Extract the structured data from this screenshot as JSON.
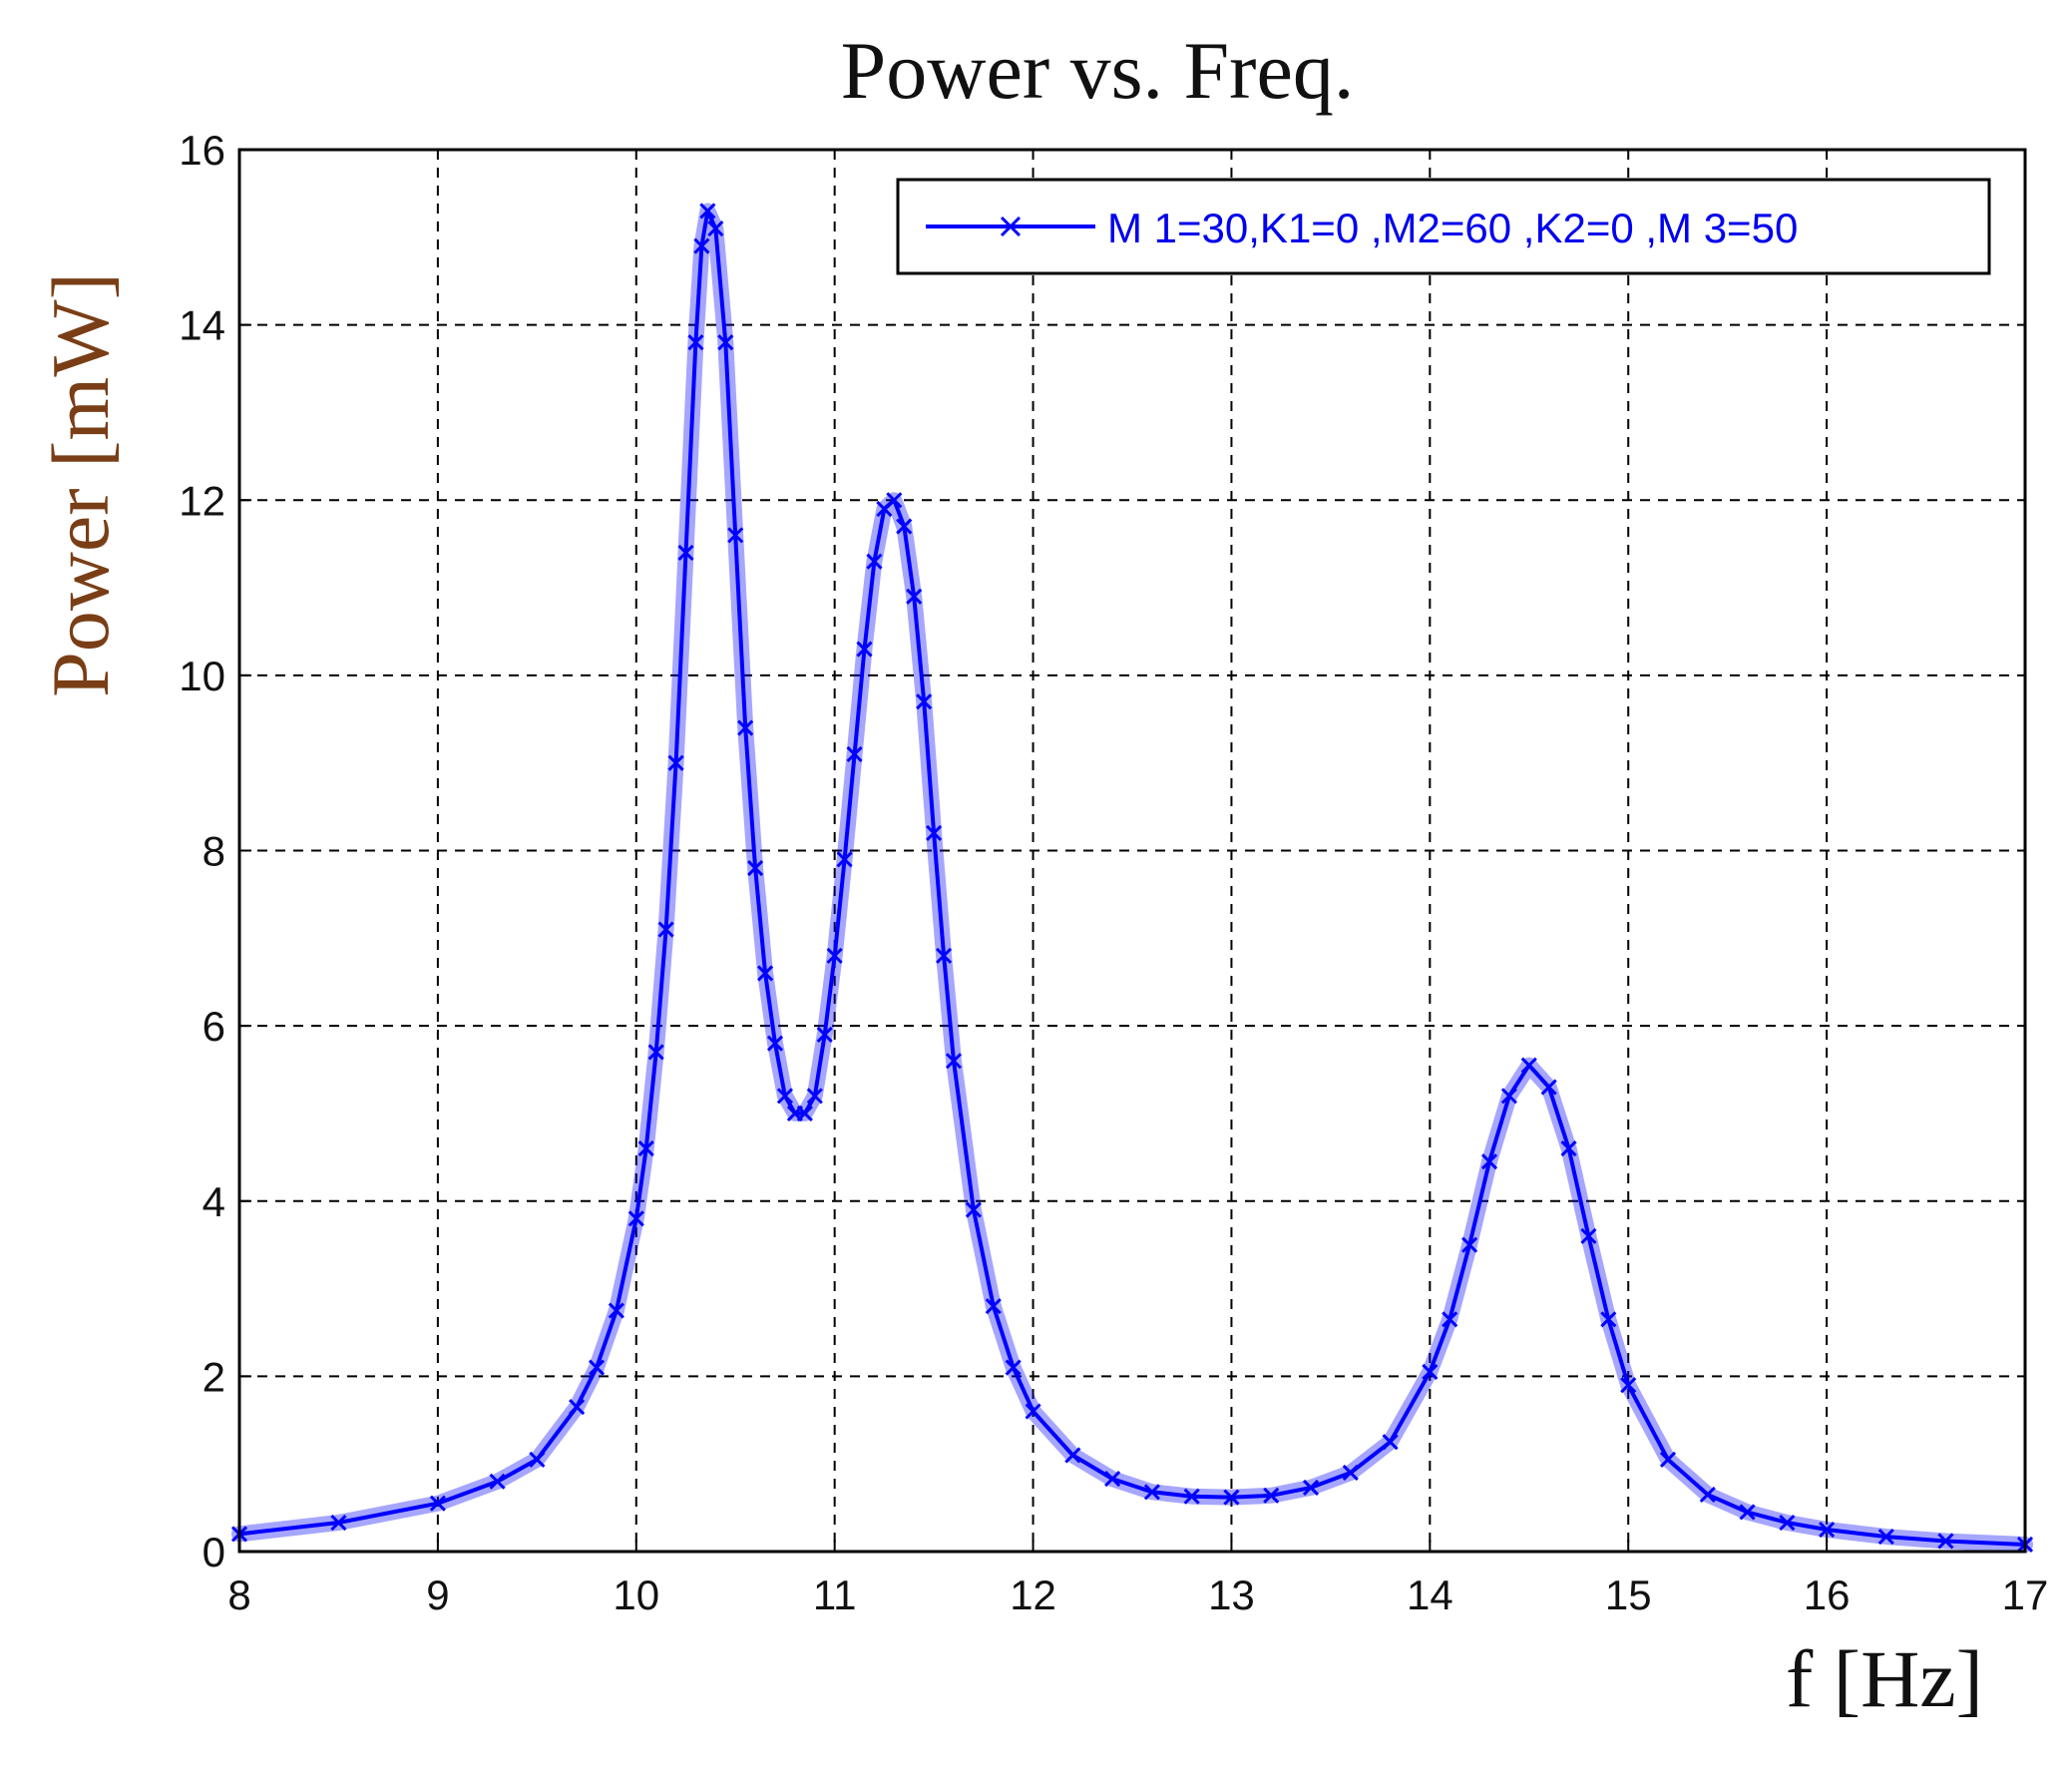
{
  "chart_data": {
    "type": "line",
    "title": "Power vs. Freq.",
    "xlabel": "f [Hz]",
    "ylabel": "Power [mW]",
    "xlim": [
      8,
      17
    ],
    "ylim": [
      0,
      16
    ],
    "xticks": [
      8,
      9,
      10,
      11,
      12,
      13,
      14,
      15,
      16,
      17
    ],
    "yticks": [
      0,
      2,
      4,
      6,
      8,
      10,
      12,
      14,
      16
    ],
    "grid": true,
    "grid_style": "dashed",
    "legend_position": "top-right",
    "marker": "x",
    "series_color": "#0000ff",
    "series": [
      {
        "name": "M 1=30,K1=0 ,M2=60 ,K2=0 ,M 3=50",
        "x": [
          8.0,
          8.5,
          9.0,
          9.3,
          9.5,
          9.7,
          9.8,
          9.9,
          10.0,
          10.05,
          10.1,
          10.15,
          10.2,
          10.25,
          10.3,
          10.33,
          10.36,
          10.4,
          10.45,
          10.5,
          10.55,
          10.6,
          10.65,
          10.7,
          10.75,
          10.8,
          10.85,
          10.9,
          10.95,
          11.0,
          11.05,
          11.1,
          11.15,
          11.2,
          11.25,
          11.3,
          11.35,
          11.4,
          11.45,
          11.5,
          11.55,
          11.6,
          11.7,
          11.8,
          11.9,
          12.0,
          12.2,
          12.4,
          12.6,
          12.8,
          13.0,
          13.2,
          13.4,
          13.6,
          13.8,
          14.0,
          14.1,
          14.2,
          14.3,
          14.4,
          14.5,
          14.6,
          14.7,
          14.8,
          14.9,
          15.0,
          15.2,
          15.4,
          15.6,
          15.8,
          16.0,
          16.3,
          16.6,
          17.0
        ],
        "values": [
          0.2,
          0.33,
          0.55,
          0.8,
          1.05,
          1.65,
          2.1,
          2.75,
          3.8,
          4.6,
          5.7,
          7.1,
          9.0,
          11.4,
          13.8,
          14.9,
          15.3,
          15.1,
          13.8,
          11.6,
          9.4,
          7.8,
          6.6,
          5.8,
          5.2,
          5.0,
          5.0,
          5.2,
          5.9,
          6.8,
          7.9,
          9.1,
          10.3,
          11.3,
          11.9,
          12.0,
          11.7,
          10.9,
          9.7,
          8.2,
          6.8,
          5.6,
          3.9,
          2.8,
          2.1,
          1.6,
          1.1,
          0.83,
          0.68,
          0.63,
          0.62,
          0.64,
          0.73,
          0.9,
          1.25,
          2.05,
          2.65,
          3.5,
          4.45,
          5.2,
          5.55,
          5.3,
          4.6,
          3.6,
          2.65,
          1.9,
          1.05,
          0.65,
          0.45,
          0.33,
          0.25,
          0.17,
          0.12,
          0.08
        ]
      }
    ]
  }
}
